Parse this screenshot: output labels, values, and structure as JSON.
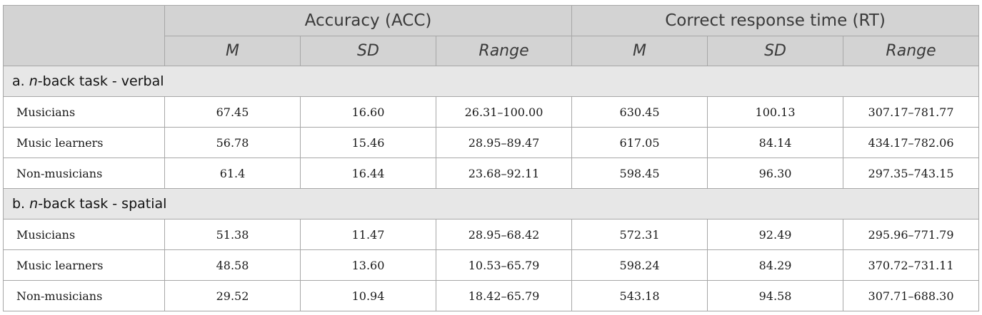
{
  "header": {
    "groups": [
      "Accuracy (ACC)",
      "Correct response time (RT)"
    ],
    "subheaders": [
      "M",
      "SD",
      "Range",
      "M",
      "SD",
      "Range"
    ]
  },
  "sections": [
    {
      "prefix": "a. ",
      "italic": "n",
      "suffix": "-back task - verbal",
      "rows": [
        {
          "label": "Musicians",
          "cells": [
            "67.45",
            "16.60",
            "26.31–100.00",
            "630.45",
            "100.13",
            "307.17–781.77"
          ]
        },
        {
          "label": "Music learners",
          "cells": [
            "56.78",
            "15.46",
            "28.95–89.47",
            "617.05",
            "84.14",
            "434.17–782.06"
          ]
        },
        {
          "label": "Non-musicians",
          "cells": [
            "61.4",
            "16.44",
            "23.68–92.11",
            "598.45",
            "96.30",
            "297.35–743.15"
          ]
        }
      ]
    },
    {
      "prefix": "b. ",
      "italic": "n",
      "suffix": "-back task - spatial",
      "rows": [
        {
          "label": "Musicians",
          "cells": [
            "51.38",
            "11.47",
            "28.95–68.42",
            "572.31",
            "92.49",
            "295.96–771.79"
          ]
        },
        {
          "label": "Music learners",
          "cells": [
            "48.58",
            "13.60",
            "10.53–65.79",
            "598.24",
            "84.29",
            "370.72–731.11"
          ]
        },
        {
          "label": "Non-musicians",
          "cells": [
            "29.52",
            "10.94",
            "18.42–65.79",
            "543.18",
            "94.58",
            "307.71–688.30"
          ]
        }
      ]
    }
  ]
}
